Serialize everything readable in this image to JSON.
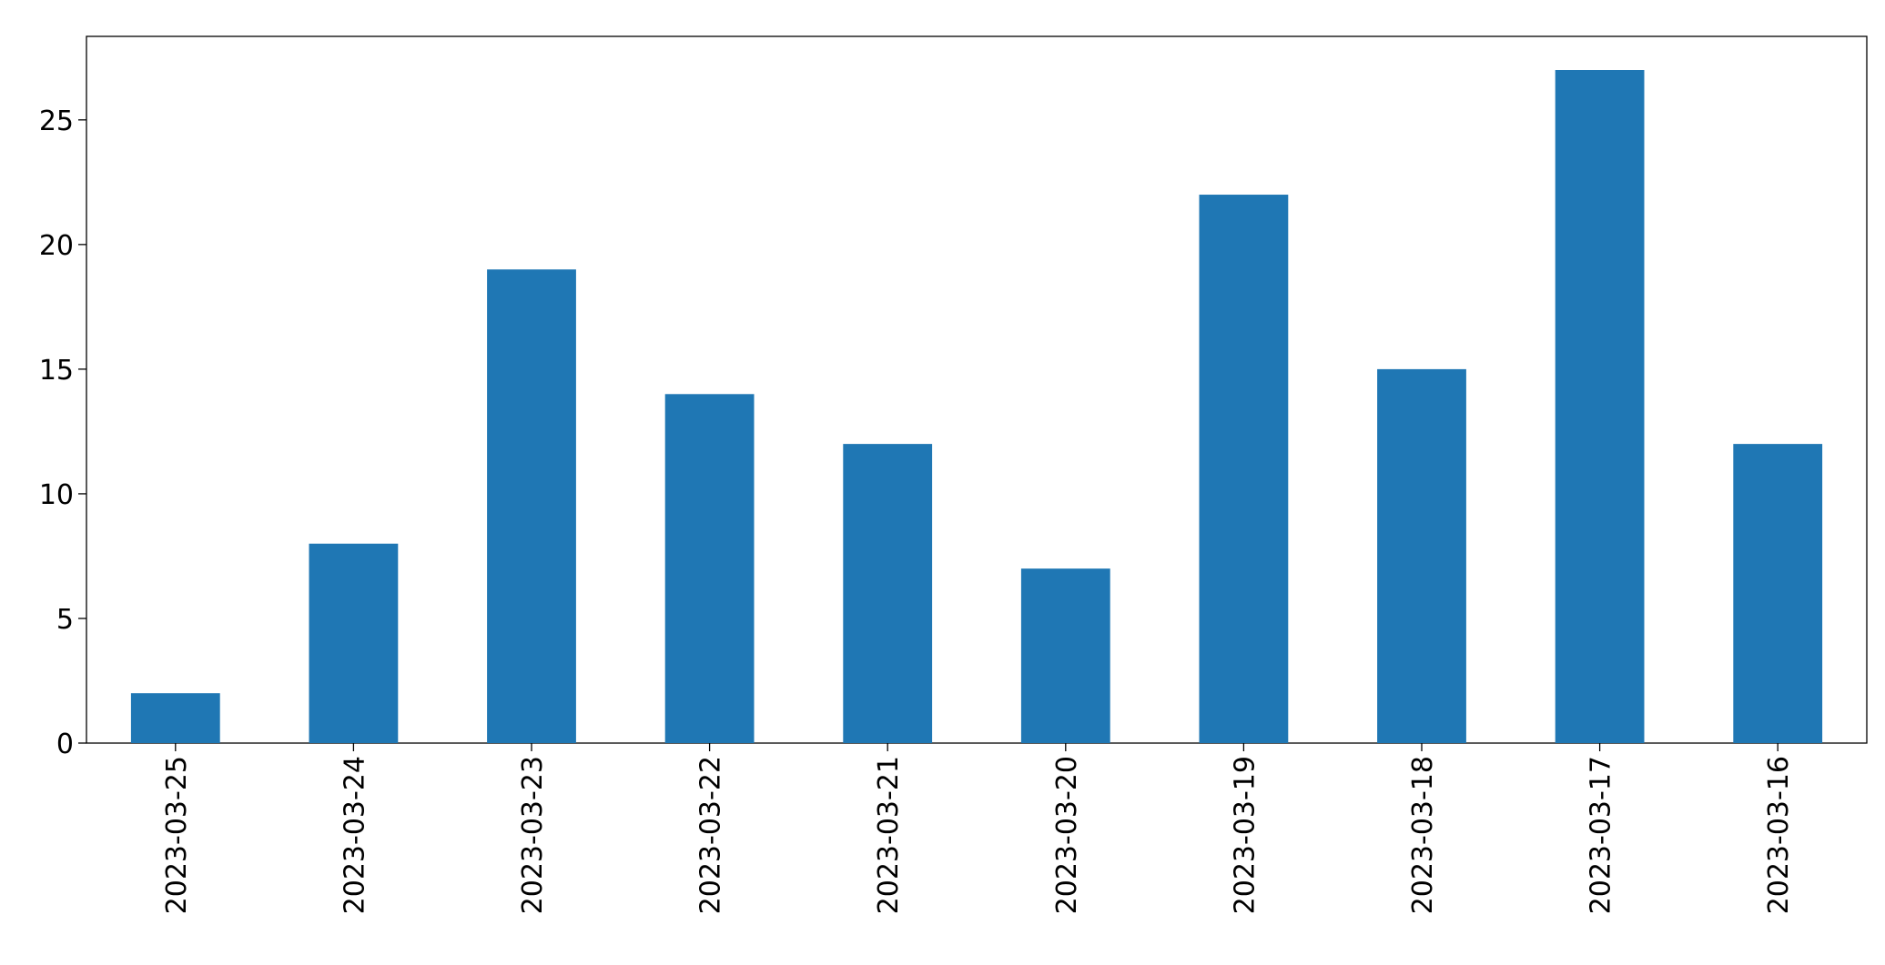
{
  "chart_data": {
    "type": "bar",
    "categories": [
      "2023-03-25",
      "2023-03-24",
      "2023-03-23",
      "2023-03-22",
      "2023-03-21",
      "2023-03-20",
      "2023-03-19",
      "2023-03-18",
      "2023-03-17",
      "2023-03-16"
    ],
    "values": [
      2,
      8,
      19,
      14,
      12,
      7,
      22,
      15,
      27,
      12
    ],
    "color": "#1f77b4",
    "ylim": [
      0,
      28.35
    ],
    "yticks": [
      0,
      5,
      10,
      15,
      20,
      25
    ],
    "grid": false
  }
}
